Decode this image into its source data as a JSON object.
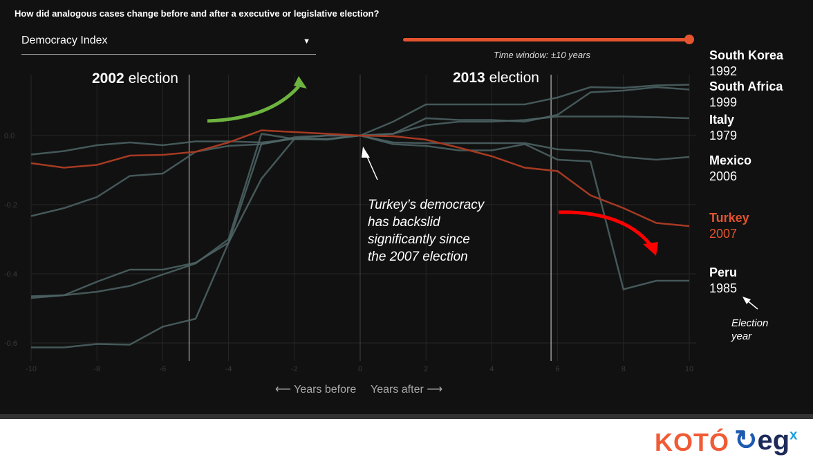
{
  "header": {
    "question": "How did analogous cases change before and after a executive or legislative election?"
  },
  "controls": {
    "metric_selected": "Democracy Index",
    "caret": "▼",
    "time_window_label": "Time window: ±10 years",
    "time_window_years": 10
  },
  "nav": {
    "before": "⟵ Years before",
    "after": "Years after ⟶"
  },
  "annotations": {
    "election1_year": "2002",
    "election1_word": "election",
    "election2_year": "2013",
    "election2_word": "election",
    "note_lines": [
      "Turkey’s democracy",
      "has backslid",
      "significantly since",
      "the 2007 election"
    ],
    "election_year_note": [
      "Election",
      "year"
    ]
  },
  "logos": {
    "koto": "KOTÓ",
    "egx": "eg",
    "egx_sup": "x"
  },
  "colors": {
    "background": "#111111",
    "turkey": "#e4542f",
    "turkey_line": "#a63a22",
    "others": "#4f6566",
    "green_arrow": "#6db33f",
    "red_arrow": "#ff0000"
  },
  "chart_data": {
    "type": "line",
    "title": "How did analogous cases change before and after a executive or legislative election?",
    "xlabel": "Years before / Years after",
    "ylabel": "Democracy Index",
    "x": [
      -10,
      -9,
      -8,
      -7,
      -6,
      -5,
      -4,
      -3,
      -2,
      -1,
      0,
      1,
      2,
      3,
      4,
      5,
      6,
      7,
      8,
      9,
      10
    ],
    "xticks": [
      "-10",
      "-8",
      "-6",
      "-4",
      "-2",
      "0",
      "2",
      "4",
      "6",
      "8",
      "10"
    ],
    "yticks": [
      "0.0",
      "-0.2",
      "-0.4",
      "-0.6"
    ],
    "xlim": [
      -10,
      10
    ],
    "ylim": [
      -0.65,
      0.18
    ],
    "grid": true,
    "legend": "right",
    "markers": [
      {
        "x": -5.2,
        "label": "2002 election"
      },
      {
        "x": 5.8,
        "label": "2013 election"
      }
    ],
    "series": [
      {
        "name": "South Korea",
        "year": "1992",
        "highlight": false,
        "values": [
          -0.233,
          -0.21,
          -0.178,
          -0.117,
          -0.11,
          -0.047,
          -0.03,
          -0.025,
          -0.008,
          0,
          0,
          0.04,
          0.09,
          0.09,
          0.09,
          0.09,
          0.11,
          0.14,
          0.138,
          0.145,
          0.147
        ]
      },
      {
        "name": "South Africa",
        "year": "1999",
        "highlight": false,
        "values": [
          -0.465,
          -0.462,
          -0.423,
          -0.388,
          -0.388,
          -0.368,
          -0.31,
          -0.025,
          -0.005,
          0,
          0,
          0.005,
          0.05,
          0.045,
          0.045,
          0.04,
          0.06,
          0.125,
          0.13,
          0.14,
          0.133
        ]
      },
      {
        "name": "Italy",
        "year": "1979",
        "highlight": false,
        "values": [
          -0.055,
          -0.045,
          -0.028,
          -0.02,
          -0.028,
          -0.017,
          -0.017,
          -0.02,
          -0.01,
          -0.01,
          0,
          0.005,
          0.03,
          0.04,
          0.04,
          0.045,
          0.055,
          0.055,
          0.055,
          0.053,
          0.05
        ]
      },
      {
        "name": "Mexico",
        "year": "2006",
        "highlight": false,
        "values": [
          -0.47,
          -0.462,
          -0.452,
          -0.435,
          -0.402,
          -0.37,
          -0.3,
          0.005,
          -0.01,
          -0.01,
          0,
          -0.02,
          -0.022,
          -0.022,
          -0.022,
          -0.022,
          -0.04,
          -0.045,
          -0.062,
          -0.07,
          -0.062
        ]
      },
      {
        "name": "Turkey",
        "year": "2007",
        "highlight": true,
        "values": [
          -0.08,
          -0.093,
          -0.085,
          -0.058,
          -0.056,
          -0.047,
          -0.02,
          0.015,
          0.01,
          0.005,
          0,
          -0.002,
          -0.012,
          -0.035,
          -0.06,
          -0.093,
          -0.103,
          -0.173,
          -0.21,
          -0.253,
          -0.262
        ]
      },
      {
        "name": "Peru",
        "year": "1985",
        "highlight": false,
        "values": [
          -0.613,
          -0.613,
          -0.603,
          -0.605,
          -0.553,
          -0.53,
          -0.31,
          -0.125,
          -0.01,
          -0.012,
          0,
          -0.025,
          -0.03,
          -0.043,
          -0.043,
          -0.025,
          -0.07,
          -0.075,
          -0.445,
          -0.42,
          -0.42
        ]
      }
    ]
  }
}
